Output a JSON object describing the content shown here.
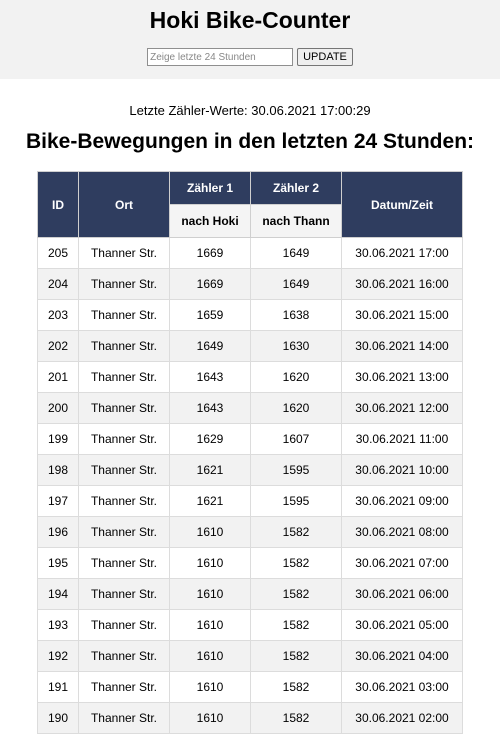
{
  "header": {
    "title": "Hoki Bike-Counter",
    "search_placeholder": "Zeige letzte 24 Stunden",
    "update_label": "UPDATE"
  },
  "last_values": "Letzte Zähler-Werte: 30.06.2021 17:00:29",
  "section_title": "Bike-Bewegungen in den letzten 24 Stunden:",
  "table": {
    "headers": {
      "id": "ID",
      "ort": "Ort",
      "z1": "Zähler 1",
      "z2": "Zähler 2",
      "z1_sub": "nach Hoki",
      "z2_sub": "nach Thann",
      "datetime": "Datum/Zeit"
    },
    "rows": [
      {
        "id": "205",
        "ort": "Thanner Str.",
        "z1": "1669",
        "z2": "1649",
        "dt": "30.06.2021 17:00"
      },
      {
        "id": "204",
        "ort": "Thanner Str.",
        "z1": "1669",
        "z2": "1649",
        "dt": "30.06.2021 16:00"
      },
      {
        "id": "203",
        "ort": "Thanner Str.",
        "z1": "1659",
        "z2": "1638",
        "dt": "30.06.2021 15:00"
      },
      {
        "id": "202",
        "ort": "Thanner Str.",
        "z1": "1649",
        "z2": "1630",
        "dt": "30.06.2021 14:00"
      },
      {
        "id": "201",
        "ort": "Thanner Str.",
        "z1": "1643",
        "z2": "1620",
        "dt": "30.06.2021 13:00"
      },
      {
        "id": "200",
        "ort": "Thanner Str.",
        "z1": "1643",
        "z2": "1620",
        "dt": "30.06.2021 12:00"
      },
      {
        "id": "199",
        "ort": "Thanner Str.",
        "z1": "1629",
        "z2": "1607",
        "dt": "30.06.2021 11:00"
      },
      {
        "id": "198",
        "ort": "Thanner Str.",
        "z1": "1621",
        "z2": "1595",
        "dt": "30.06.2021 10:00"
      },
      {
        "id": "197",
        "ort": "Thanner Str.",
        "z1": "1621",
        "z2": "1595",
        "dt": "30.06.2021 09:00"
      },
      {
        "id": "196",
        "ort": "Thanner Str.",
        "z1": "1610",
        "z2": "1582",
        "dt": "30.06.2021 08:00"
      },
      {
        "id": "195",
        "ort": "Thanner Str.",
        "z1": "1610",
        "z2": "1582",
        "dt": "30.06.2021 07:00"
      },
      {
        "id": "194",
        "ort": "Thanner Str.",
        "z1": "1610",
        "z2": "1582",
        "dt": "30.06.2021 06:00"
      },
      {
        "id": "193",
        "ort": "Thanner Str.",
        "z1": "1610",
        "z2": "1582",
        "dt": "30.06.2021 05:00"
      },
      {
        "id": "192",
        "ort": "Thanner Str.",
        "z1": "1610",
        "z2": "1582",
        "dt": "30.06.2021 04:00"
      },
      {
        "id": "191",
        "ort": "Thanner Str.",
        "z1": "1610",
        "z2": "1582",
        "dt": "30.06.2021 03:00"
      },
      {
        "id": "190",
        "ort": "Thanner Str.",
        "z1": "1610",
        "z2": "1582",
        "dt": "30.06.2021 02:00"
      }
    ]
  }
}
